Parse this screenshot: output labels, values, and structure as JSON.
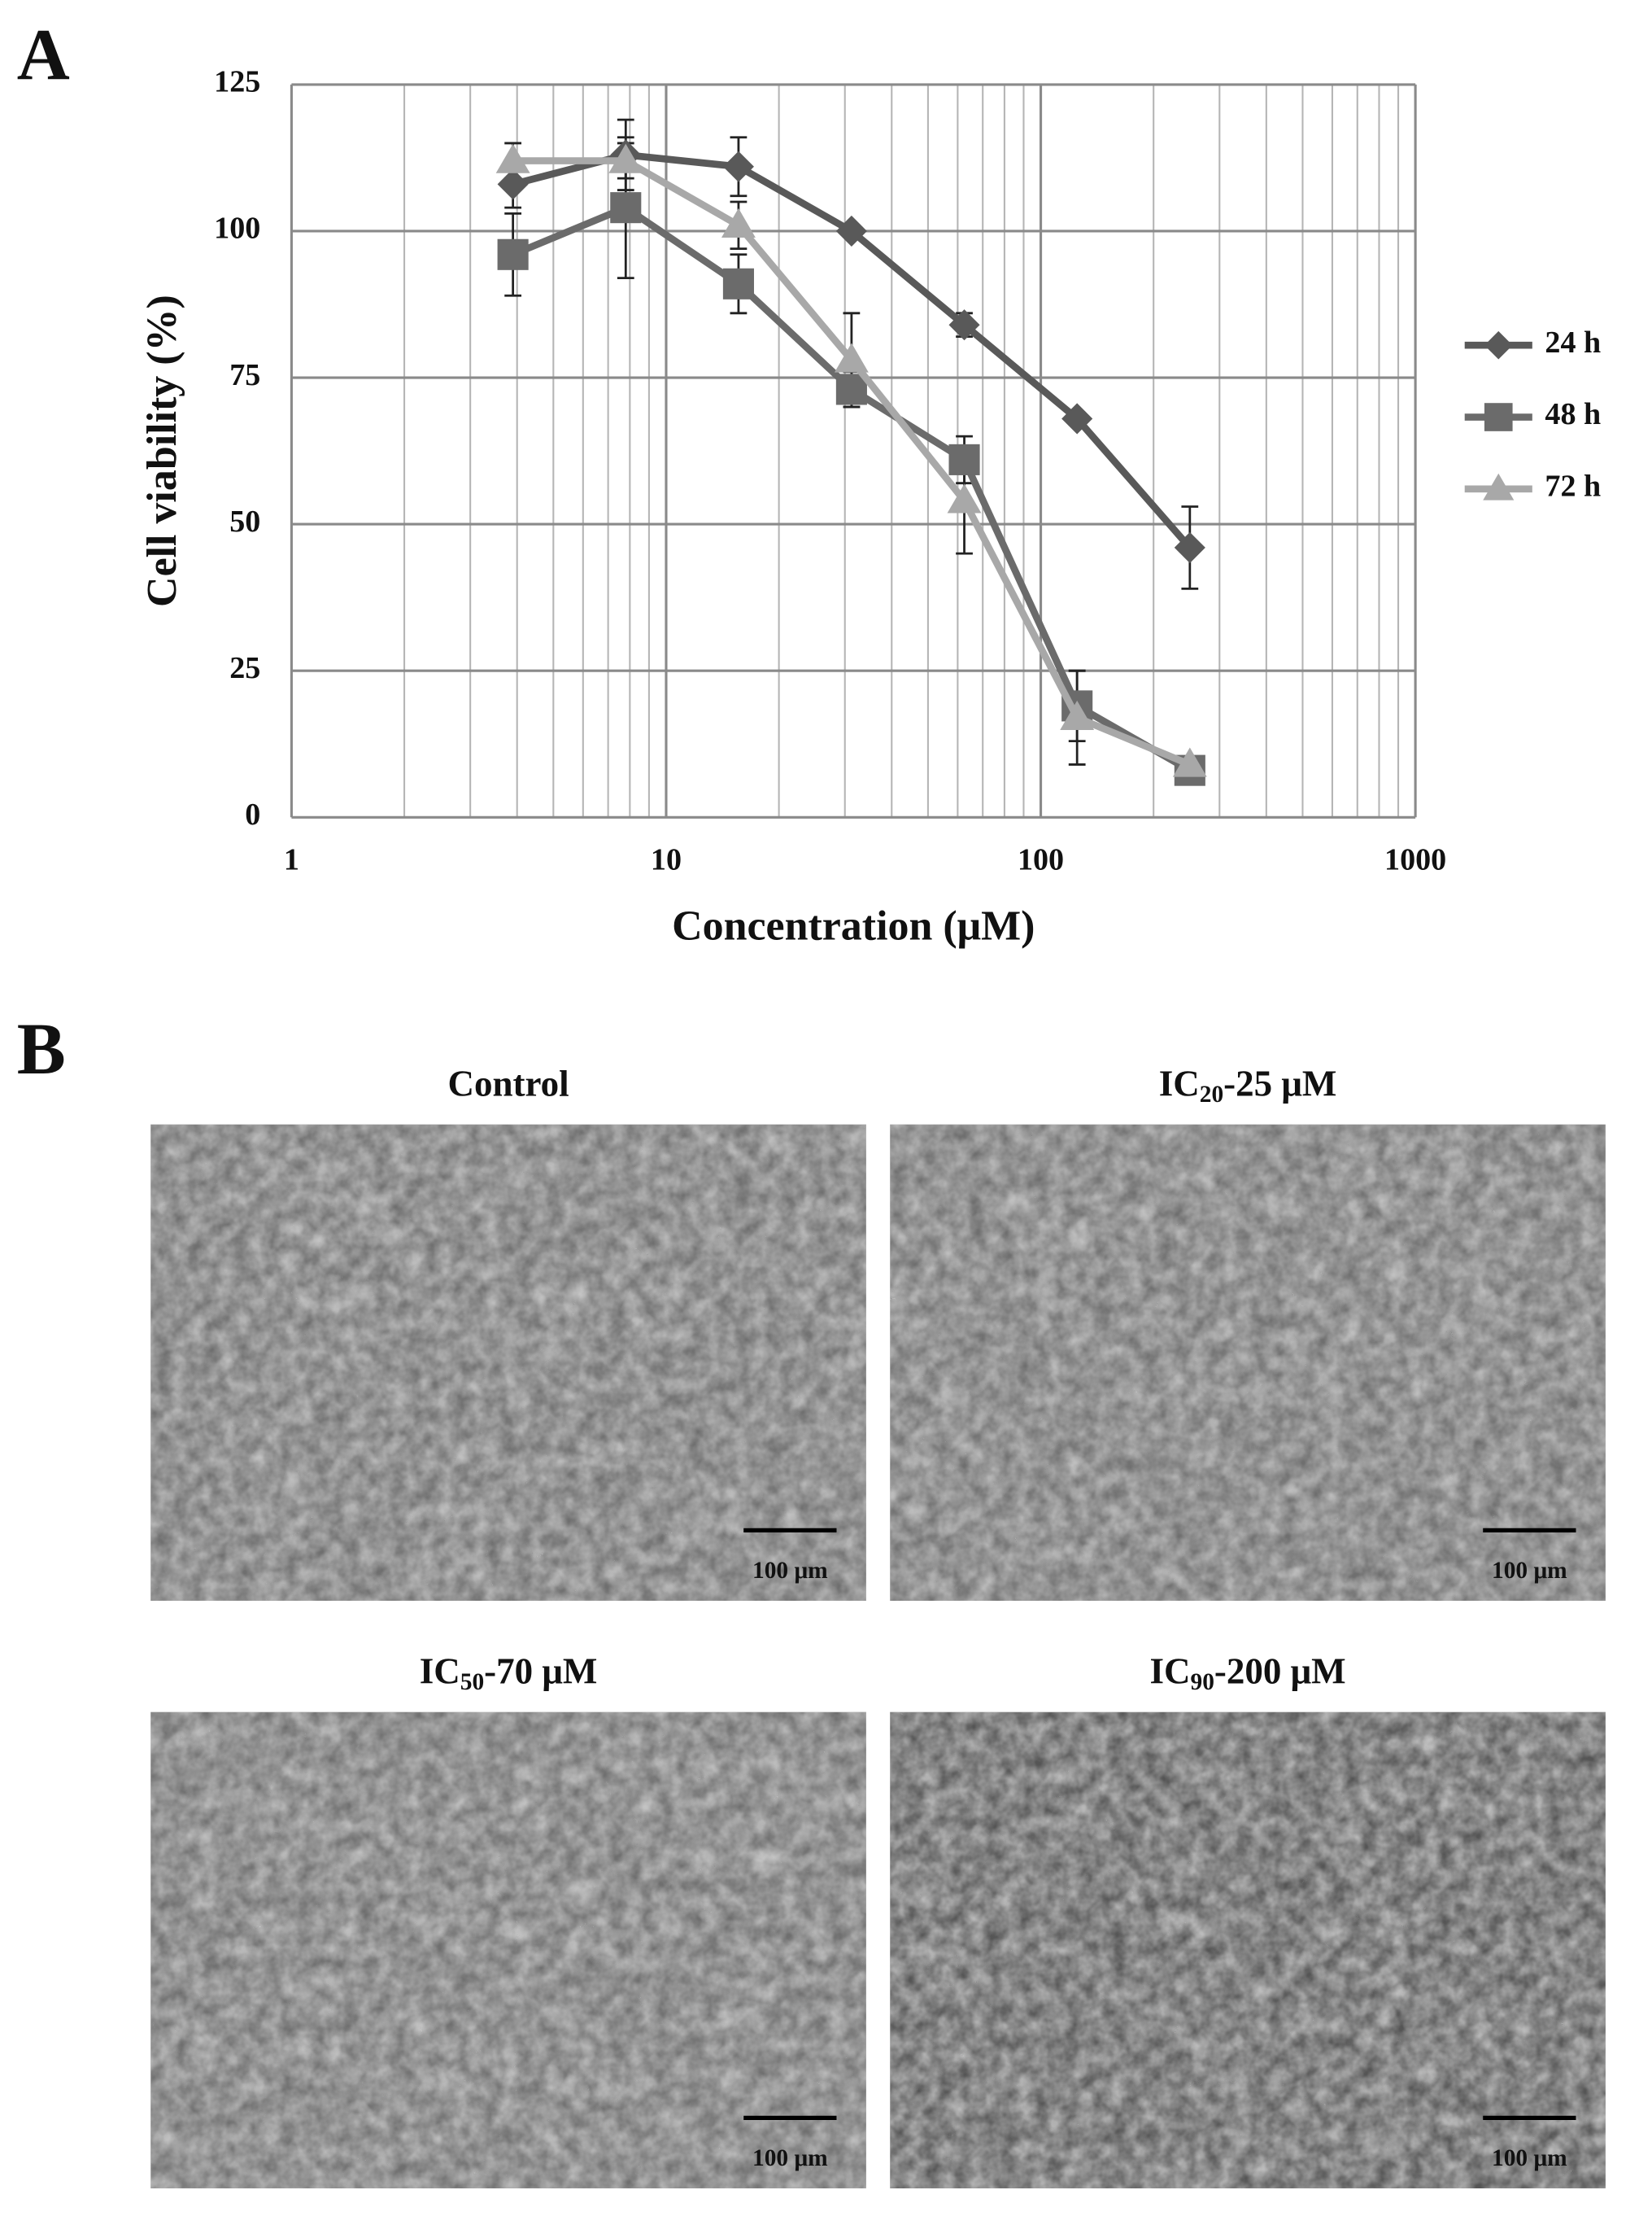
{
  "panel_labels": [
    "A",
    "B"
  ],
  "chart_data": {
    "type": "line",
    "x_label": "Concentration (μM)",
    "y_label": "Cell viability (%)",
    "x": [
      3.9,
      7.8,
      15.6,
      31.25,
      62.5,
      125,
      250
    ],
    "xscale": "log",
    "xlim": [
      1,
      1000
    ],
    "xticks": [
      1,
      10,
      100,
      1000
    ],
    "minor_xticks": [
      2,
      3,
      4,
      5,
      6,
      7,
      8,
      9,
      20,
      30,
      40,
      50,
      60,
      70,
      80,
      90,
      200,
      300,
      400,
      500,
      600,
      700,
      800,
      900
    ],
    "ylim": [
      0,
      125
    ],
    "yticks": [
      0,
      25,
      50,
      75,
      100,
      125
    ],
    "grid": true,
    "legend": "right",
    "series": [
      {
        "name": "24 h",
        "color": "#595959",
        "marker": "diamond",
        "values": [
          108,
          113,
          111,
          100,
          84,
          68,
          46
        ],
        "errors": [
          4,
          6,
          5,
          1,
          2,
          1,
          7
        ]
      },
      {
        "name": "48 h",
        "color": "#6b6b6b",
        "marker": "square",
        "values": [
          96,
          104,
          91,
          73,
          61,
          19,
          8
        ],
        "errors": [
          7,
          12,
          5,
          3,
          4,
          6,
          1
        ]
      },
      {
        "name": "72 h",
        "color": "#a8a8a8",
        "marker": "triangle",
        "values": [
          112,
          112,
          101,
          78,
          54,
          17,
          9
        ],
        "errors": [
          3,
          3,
          4,
          8,
          9,
          8,
          1
        ]
      }
    ]
  },
  "micrographs": [
    {
      "title": {
        "prefix": "Control"
      },
      "scale_bar": "100 μm"
    },
    {
      "title": {
        "prefix": "IC",
        "sub": "20",
        "suffix": "-25 μM"
      },
      "scale_bar": "100 μm"
    },
    {
      "title": {
        "prefix": "IC",
        "sub": "50",
        "suffix": "-70 μM"
      },
      "scale_bar": "100 μm"
    },
    {
      "title": {
        "prefix": "IC",
        "sub": "90",
        "suffix": "-200 μM"
      },
      "scale_bar": "100 μm"
    }
  ]
}
